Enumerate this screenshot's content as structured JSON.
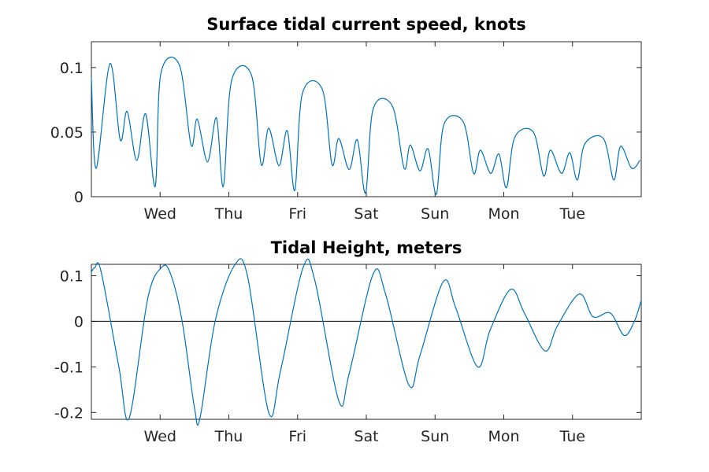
{
  "chart_data": [
    {
      "type": "line",
      "title": "Surface tidal current speed, knots",
      "x_tick_labels": [
        "Wed",
        "Thu",
        "Fri",
        "Sat",
        "Sun",
        "Mon",
        "Tue"
      ],
      "xlim": [
        0,
        8
      ],
      "x_ticks": [
        1,
        2,
        3,
        4,
        5,
        6,
        7
      ],
      "ylim": [
        0,
        0.12
      ],
      "y_ticks": [
        0,
        0.05,
        0.1
      ],
      "y_tick_labels": [
        "0",
        "0.05",
        "0.1"
      ],
      "series": [
        {
          "color": "#0072BD",
          "x": [
            0.0,
            0.07,
            0.27,
            0.42,
            0.52,
            0.66,
            0.79,
            0.93,
            1.01,
            1.28,
            1.45,
            1.54,
            1.69,
            1.82,
            1.92,
            2.04,
            2.33,
            2.47,
            2.58,
            2.73,
            2.85,
            2.96,
            3.07,
            3.36,
            3.5,
            3.6,
            3.75,
            3.87,
            3.99,
            4.1,
            4.38,
            4.55,
            4.64,
            4.78,
            4.9,
            5.02,
            5.13,
            5.41,
            5.56,
            5.66,
            5.81,
            5.93,
            6.04,
            6.16,
            6.43,
            6.58,
            6.68,
            6.84,
            6.96,
            7.07,
            7.18,
            7.45,
            7.6,
            7.7,
            7.86,
            7.98
          ],
          "y": [
            0.092,
            0.022,
            0.103,
            0.044,
            0.066,
            0.028,
            0.064,
            0.008,
            0.095,
            0.102,
            0.04,
            0.06,
            0.027,
            0.061,
            0.008,
            0.09,
            0.094,
            0.025,
            0.053,
            0.024,
            0.051,
            0.005,
            0.08,
            0.083,
            0.025,
            0.045,
            0.021,
            0.044,
            0.003,
            0.068,
            0.07,
            0.022,
            0.04,
            0.02,
            0.037,
            0.002,
            0.056,
            0.058,
            0.018,
            0.036,
            0.018,
            0.033,
            0.007,
            0.046,
            0.05,
            0.016,
            0.036,
            0.018,
            0.034,
            0.013,
            0.041,
            0.045,
            0.013,
            0.039,
            0.022,
            0.028
          ]
        }
      ]
    },
    {
      "type": "line",
      "title": "Tidal Height, meters",
      "x_tick_labels": [
        "Wed",
        "Thu",
        "Fri",
        "Sat",
        "Sun",
        "Mon",
        "Tue"
      ],
      "xlim": [
        0,
        8
      ],
      "x_ticks": [
        1,
        2,
        3,
        4,
        5,
        6,
        7
      ],
      "ylim": [
        -0.215,
        0.125
      ],
      "y_ticks": [
        -0.2,
        -0.1,
        0,
        0.1
      ],
      "y_tick_labels": [
        "-0.2",
        "-0.1",
        "0",
        "0.1"
      ],
      "zero_line": true,
      "series": [
        {
          "color": "#0072BD",
          "x": [
            0.0,
            0.05,
            0.14,
            0.4,
            0.55,
            0.82,
            1.02,
            1.15,
            1.32,
            1.5,
            1.58,
            1.8,
            2.08,
            2.27,
            2.58,
            2.75,
            3.08,
            3.25,
            3.6,
            3.75,
            4.1,
            4.28,
            4.62,
            4.78,
            5.12,
            5.3,
            5.62,
            5.8,
            6.1,
            6.3,
            6.6,
            6.78,
            7.1,
            7.3,
            7.55,
            7.75,
            7.9,
            8.0
          ],
          "y": [
            0.108,
            0.118,
            0.11,
            -0.1,
            -0.212,
            0.05,
            0.118,
            0.105,
            0.0,
            -0.19,
            -0.212,
            0.0,
            0.122,
            0.1,
            -0.2,
            -0.11,
            0.118,
            0.09,
            -0.175,
            -0.115,
            0.104,
            0.06,
            -0.14,
            -0.075,
            0.087,
            0.03,
            -0.1,
            -0.02,
            0.07,
            0.018,
            -0.065,
            -0.01,
            0.06,
            0.01,
            0.018,
            -0.031,
            0.0,
            0.046
          ]
        }
      ]
    }
  ]
}
